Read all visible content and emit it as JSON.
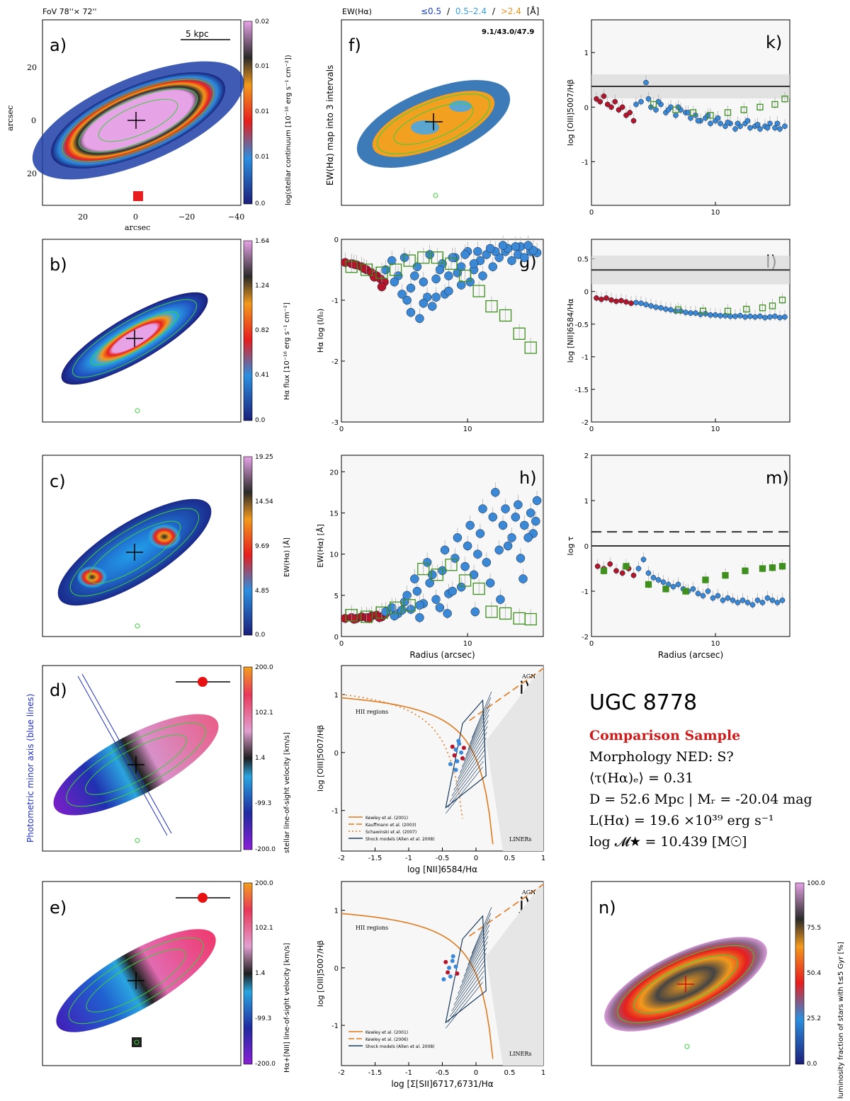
{
  "colors": {
    "red": "#b3152a",
    "blue": "#3a88d6",
    "green": "#3f8f1f",
    "orange": "#e07a1f",
    "navy": "#1a3b5c"
  },
  "header": {
    "fov": "FoV 78''× 72''",
    "ew_title": "EW(Hα)",
    "ew_intervals": [
      "≤0.5",
      "0.5–2.4",
      ">2.4"
    ],
    "ew_sep": "/",
    "ew_unit": "[Å]",
    "ew_numbers": "9.1/43.0/47.9"
  },
  "maps": {
    "a": {
      "letter": "a)",
      "colorbar_label": "log(stellar continuum [10⁻¹⁶ erg s⁻¹ cm⁻²])",
      "ticks": [
        "0.02",
        "0.01",
        "0.01",
        "0.01",
        "0.0"
      ],
      "xticks": [
        "20",
        "0",
        "−20",
        "−40"
      ],
      "yticks": [
        "20",
        "0",
        "20"
      ],
      "xlabel": "arcsec",
      "ylabel": "arcsec",
      "scalebar": "5 kpc"
    },
    "b": {
      "letter": "b)",
      "colorbar_label": "Hα flux [10⁻¹⁶ erg s⁻¹ cm⁻²]",
      "ticks": [
        "1.64",
        "1.24",
        "0.82",
        "0.41",
        "0.0"
      ]
    },
    "c": {
      "letter": "c)",
      "colorbar_label": "EW(Hα) [Å]",
      "ticks": [
        "19.25",
        "14.54",
        "9.69",
        "4.85",
        "0.0"
      ]
    },
    "d": {
      "letter": "d)",
      "colorbar_label": "stellar line-of-sight velocity [km/s]",
      "ticks": [
        "200.0",
        "102.1",
        "1.4",
        "-99.3",
        "-200.0"
      ],
      "side_label": "Photometric minor axis (blue lines)"
    },
    "e": {
      "letter": "e)",
      "colorbar_label": "Hα+[NII] line-of-sight velocity [km/s]",
      "ticks": [
        "200.0",
        "102.1",
        "1.4",
        "-99.3",
        "-200.0"
      ]
    },
    "f": {
      "letter": "f)",
      "ylabel": "EW(Hα) map into 3 intervals"
    },
    "n": {
      "letter": "n)",
      "colorbar_label": "luminosity fraction of stars with t≤5 Gyr [%]",
      "ticks": [
        "100.0",
        "75.5",
        "50.4",
        "25.2",
        "0.0"
      ]
    }
  },
  "chart_data": [
    {
      "id": "g",
      "type": "scatter",
      "letter": "g)",
      "xlabel": "",
      "ylabel": "Hα log (I/I₀)",
      "xlim": [
        0,
        16
      ],
      "ylim": [
        -3,
        0
      ],
      "xticks": [
        0,
        10
      ],
      "yticks": [
        0,
        -1,
        -2,
        -3
      ],
      "series": [
        {
          "name": "red",
          "x": [
            0.3,
            0.8,
            1.2,
            1.6,
            2.0,
            2.4,
            2.8,
            3.1,
            3.4,
            1.0,
            1.8,
            2.6,
            3.2
          ],
          "y": [
            -0.38,
            -0.4,
            -0.42,
            -0.45,
            -0.5,
            -0.55,
            -0.6,
            -0.65,
            -0.7,
            -0.41,
            -0.48,
            -0.62,
            -0.78
          ]
        },
        {
          "name": "blue",
          "x": [
            3.5,
            4.0,
            4.5,
            5.0,
            5.5,
            6.0,
            6.5,
            7.0,
            7.5,
            8.0,
            8.5,
            9.0,
            9.5,
            10.0,
            10.5,
            11.0,
            11.5,
            12.0,
            12.5,
            13.0,
            13.5,
            14.0,
            14.5,
            15.0,
            15.5,
            4.2,
            5.2,
            6.2,
            7.2,
            8.2,
            9.2,
            10.2,
            11.2,
            12.2,
            13.2,
            14.2,
            15.2,
            4.8,
            5.8,
            6.8,
            7.8,
            8.8,
            9.8,
            10.8,
            11.8,
            12.8,
            13.8,
            14.8,
            5.5,
            6.5,
            7.5,
            8.5,
            9.5,
            10.5
          ],
          "y": [
            -0.5,
            -0.35,
            -0.6,
            -0.3,
            -0.8,
            -0.45,
            -0.7,
            -0.25,
            -0.95,
            -0.4,
            -0.6,
            -0.3,
            -0.75,
            -0.2,
            -0.5,
            -0.35,
            -0.25,
            -0.45,
            -0.3,
            -0.2,
            -0.35,
            -0.25,
            -0.3,
            -0.2,
            -0.22,
            -0.7,
            -1.0,
            -1.3,
            -1.1,
            -0.9,
            -0.55,
            -0.7,
            -0.6,
            -0.2,
            -0.15,
            -0.12,
            -0.18,
            -0.9,
            -0.6,
            -0.95,
            -0.5,
            -0.3,
            -0.25,
            -0.2,
            -0.15,
            -0.1,
            -0.12,
            -0.1,
            -1.2,
            -1.05,
            -0.65,
            -0.85,
            -0.45,
            -0.4
          ]
        },
        {
          "name": "green",
          "x": [
            0.8,
            2.0,
            3.2,
            4.3,
            5.4,
            6.5,
            7.6,
            8.7,
            9.8,
            10.9,
            11.9,
            13.0,
            14.1,
            15.0
          ],
          "y": [
            -0.45,
            -0.5,
            -0.55,
            -0.5,
            -0.35,
            -0.3,
            -0.3,
            -0.4,
            -0.6,
            -0.85,
            -1.1,
            -1.25,
            -1.55,
            -1.78
          ]
        }
      ]
    },
    {
      "id": "h",
      "type": "scatter",
      "letter": "h)",
      "xlabel": "Radius (arcsec)",
      "ylabel": "EW(Hα) [Å]",
      "xlim": [
        0,
        16
      ],
      "ylim": [
        0,
        22
      ],
      "xticks": [
        0,
        10
      ],
      "yticks": [
        0,
        5,
        10,
        15,
        20
      ],
      "series": [
        {
          "name": "red",
          "x": [
            0.3,
            0.8,
            1.2,
            1.6,
            2.0,
            2.4,
            2.8,
            3.2,
            3.5,
            1.0,
            2.2,
            3.0
          ],
          "y": [
            2.2,
            2.3,
            2.2,
            2.4,
            2.3,
            2.5,
            2.6,
            2.4,
            2.8,
            2.1,
            2.2,
            2.3
          ]
        },
        {
          "name": "blue",
          "x": [
            3.5,
            4.0,
            4.5,
            5.0,
            5.5,
            6.0,
            6.5,
            7.0,
            7.5,
            8.0,
            8.5,
            9.0,
            9.5,
            10.0,
            10.5,
            11.0,
            11.5,
            12.0,
            12.5,
            13.0,
            13.5,
            14.0,
            14.5,
            15.0,
            15.5,
            4.2,
            5.2,
            6.2,
            7.2,
            8.2,
            9.2,
            10.2,
            11.2,
            12.2,
            13.2,
            14.2,
            15.2,
            4.8,
            5.8,
            6.8,
            7.8,
            8.8,
            9.8,
            10.8,
            11.8,
            12.8,
            13.8,
            14.8,
            15.4,
            6.2,
            8.4,
            10.6,
            12.6,
            14.4
          ],
          "y": [
            3.0,
            3.5,
            2.8,
            4.2,
            3.3,
            5.5,
            4.0,
            6.5,
            4.5,
            8.0,
            5.2,
            9.5,
            6.0,
            11.0,
            7.5,
            12.5,
            9.0,
            14.5,
            10.5,
            15.5,
            12.0,
            16.0,
            13.5,
            15.0,
            16.5,
            2.5,
            5.0,
            3.8,
            7.5,
            10.5,
            12.0,
            13.5,
            15.5,
            17.5,
            11.0,
            9.5,
            12.5,
            3.2,
            7.0,
            9.0,
            3.5,
            5.5,
            8.5,
            10.0,
            6.5,
            13.5,
            14.5,
            12.0,
            14.0,
            2.3,
            2.8,
            3.0,
            4.5,
            7.0
          ]
        },
        {
          "name": "green",
          "x": [
            0.8,
            2.0,
            3.2,
            4.3,
            5.4,
            6.5,
            7.6,
            8.7,
            9.8,
            10.9,
            11.9,
            13.0,
            14.1,
            15.0
          ],
          "y": [
            2.6,
            2.4,
            2.9,
            3.5,
            3.8,
            8.2,
            7.5,
            8.7,
            6.8,
            5.8,
            3.0,
            2.8,
            2.2,
            2.1
          ]
        }
      ]
    },
    {
      "id": "k",
      "type": "scatter",
      "letter": "k)",
      "xlabel": "",
      "ylabel": "log [OIII]5007/Hβ",
      "xlim": [
        0,
        16
      ],
      "ylim": [
        -1.8,
        1.6
      ],
      "xticks": [
        0,
        10
      ],
      "yticks": [
        1,
        0,
        -1
      ],
      "hline": 0.38,
      "series": [
        {
          "name": "red",
          "x": [
            0.4,
            0.7,
            1.0,
            1.3,
            1.6,
            1.9,
            2.2,
            2.5,
            2.8,
            3.1,
            3.4
          ],
          "y": [
            0.15,
            0.1,
            0.2,
            0.05,
            0.0,
            0.1,
            -0.05,
            0.0,
            -0.15,
            -0.1,
            -0.25
          ]
        },
        {
          "name": "blue",
          "x": [
            3.6,
            4.0,
            4.4,
            4.8,
            5.2,
            5.6,
            6.0,
            6.4,
            6.8,
            7.2,
            7.6,
            8.0,
            8.4,
            8.8,
            9.2,
            9.6,
            10.0,
            10.4,
            10.8,
            11.2,
            11.6,
            12.0,
            12.4,
            12.8,
            13.2,
            13.6,
            14.0,
            14.4,
            14.8,
            15.2,
            15.6,
            4.6,
            5.4,
            6.2,
            7.0,
            7.8,
            8.6,
            9.4,
            10.2,
            11.0,
            11.8,
            12.6,
            13.4,
            14.2,
            15.0
          ],
          "y": [
            0.05,
            0.1,
            0.45,
            0.0,
            -0.05,
            0.05,
            -0.1,
            0.0,
            -0.15,
            -0.05,
            -0.1,
            -0.2,
            -0.15,
            -0.25,
            -0.2,
            -0.3,
            -0.25,
            -0.3,
            -0.35,
            -0.3,
            -0.4,
            -0.35,
            -0.3,
            -0.38,
            -0.35,
            -0.4,
            -0.35,
            -0.3,
            -0.38,
            -0.4,
            -0.35,
            0.15,
            0.1,
            -0.05,
            0.0,
            -0.1,
            -0.25,
            -0.15,
            -0.2,
            -0.28,
            -0.3,
            -0.25,
            -0.32,
            -0.38,
            -0.3
          ]
        },
        {
          "name": "green",
          "x": [
            5.0,
            6.8,
            8.2,
            9.6,
            11.0,
            12.3,
            13.6,
            14.8,
            15.6
          ],
          "y": [
            0.05,
            -0.05,
            -0.1,
            -0.15,
            -0.1,
            -0.05,
            0.0,
            0.05,
            0.15
          ]
        }
      ]
    },
    {
      "id": "l",
      "type": "scatter",
      "letter": "l)",
      "xlabel": "",
      "ylabel": "log [NII]6584/Hα",
      "xlim": [
        0,
        16
      ],
      "ylim": [
        -2,
        0.8
      ],
      "xticks": [
        0,
        10
      ],
      "yticks": [
        0.5,
        0,
        -0.5,
        -1,
        -1.5,
        -2
      ],
      "hline": 0.33,
      "series": [
        {
          "name": "red",
          "x": [
            0.4,
            0.8,
            1.2,
            1.6,
            2.0,
            2.4,
            2.8,
            3.2
          ],
          "y": [
            -0.1,
            -0.12,
            -0.1,
            -0.13,
            -0.15,
            -0.14,
            -0.16,
            -0.18
          ]
        },
        {
          "name": "blue",
          "x": [
            3.6,
            4.0,
            4.4,
            4.8,
            5.2,
            5.6,
            6.0,
            6.4,
            6.8,
            7.2,
            7.6,
            8.0,
            8.4,
            8.8,
            9.2,
            9.6,
            10.0,
            10.4,
            10.8,
            11.2,
            11.6,
            12.0,
            12.4,
            12.8,
            13.2,
            13.6,
            14.0,
            14.4,
            14.8,
            15.2,
            15.6
          ],
          "y": [
            -0.17,
            -0.18,
            -0.2,
            -0.22,
            -0.24,
            -0.25,
            -0.27,
            -0.28,
            -0.3,
            -0.3,
            -0.32,
            -0.33,
            -0.33,
            -0.35,
            -0.34,
            -0.36,
            -0.36,
            -0.37,
            -0.37,
            -0.38,
            -0.38,
            -0.37,
            -0.39,
            -0.38,
            -0.39,
            -0.38,
            -0.4,
            -0.39,
            -0.38,
            -0.4,
            -0.39
          ]
        },
        {
          "name": "green",
          "x": [
            7.0,
            9.0,
            11.0,
            12.5,
            13.8,
            14.6,
            15.4
          ],
          "y": [
            -0.28,
            -0.3,
            -0.3,
            -0.27,
            -0.25,
            -0.22,
            -0.13
          ]
        }
      ]
    },
    {
      "id": "m",
      "type": "scatter",
      "letter": "m)",
      "xlabel": "Radius (arcsec)",
      "ylabel": "log τ",
      "xlim": [
        0,
        16
      ],
      "ylim": [
        -2,
        2
      ],
      "xticks": [
        0,
        10
      ],
      "yticks": [
        2,
        1,
        0,
        -1,
        -2
      ],
      "hline": 0,
      "dashed_hline": 0.31,
      "series": [
        {
          "name": "red",
          "x": [
            0.5,
            1.0,
            1.5,
            2.0,
            2.5,
            3.0,
            3.4
          ],
          "y": [
            -0.45,
            -0.5,
            -0.4,
            -0.55,
            -0.6,
            -0.5,
            -0.65
          ]
        },
        {
          "name": "blue",
          "x": [
            3.8,
            4.2,
            4.6,
            5.0,
            5.4,
            5.8,
            6.2,
            6.6,
            7.0,
            7.4,
            7.8,
            8.2,
            8.6,
            9.0,
            9.4,
            9.8,
            10.2,
            10.6,
            11.0,
            11.4,
            11.8,
            12.2,
            12.6,
            13.0,
            13.4,
            13.8,
            14.2,
            14.6,
            15.0,
            15.4
          ],
          "y": [
            -0.5,
            -0.3,
            -0.6,
            -0.7,
            -0.75,
            -0.8,
            -0.85,
            -0.9,
            -0.85,
            -0.95,
            -1.0,
            -0.95,
            -1.05,
            -1.1,
            -1.0,
            -1.15,
            -1.1,
            -1.2,
            -1.15,
            -1.2,
            -1.25,
            -1.2,
            -1.25,
            -1.3,
            -1.2,
            -1.25,
            -1.15,
            -1.2,
            -1.25,
            -1.2
          ]
        },
        {
          "name": "green",
          "x": [
            1.0,
            2.8,
            4.6,
            6.0,
            7.6,
            9.2,
            10.8,
            12.4,
            13.8,
            14.6,
            15.4
          ],
          "y": [
            -0.55,
            -0.45,
            -0.85,
            -0.95,
            -1.0,
            -0.75,
            -0.65,
            -0.55,
            -0.5,
            -0.48,
            -0.45
          ]
        }
      ]
    },
    {
      "id": "i",
      "type": "line",
      "letter": "i)",
      "xlabel": "log [NII]6584/Hα",
      "ylabel": "log [OIII]5007/Hβ",
      "xlim": [
        -2,
        1
      ],
      "ylim": [
        -1.7,
        1.5
      ],
      "xticks": [
        -2,
        -1.5,
        -1,
        -0.5,
        0,
        0.5,
        1
      ],
      "yticks": [
        1,
        0,
        -1
      ],
      "region_labels": [
        "AGN",
        "HII regions",
        "LINERs"
      ],
      "legend": [
        "Kewley et al. (2001)",
        "Kauffmann et al. (2003)",
        "Schawinski et al. (2007)",
        "Shock models (Allen et al. 2008)"
      ],
      "points": {
        "x": [
          -0.35,
          -0.3,
          -0.25,
          -0.32,
          -0.22,
          -0.28,
          -0.2,
          -0.38,
          -0.26,
          -0.18,
          -0.3
        ],
        "y": [
          0.1,
          0.05,
          0.15,
          -0.05,
          0.0,
          -0.15,
          -0.1,
          -0.2,
          0.2,
          0.08,
          -0.3
        ]
      }
    },
    {
      "id": "j",
      "type": "line",
      "letter": "j)",
      "xlabel": "log [Σ[SII]6717,6731/Hα",
      "ylabel": "log [OIII]5007/Hβ",
      "xlim": [
        -2,
        1
      ],
      "ylim": [
        -1.7,
        1.5
      ],
      "xticks": [
        -2,
        -1.5,
        -1,
        -0.5,
        0,
        0.5,
        1
      ],
      "yticks": [
        1,
        0,
        -1
      ],
      "region_labels": [
        "AGN",
        "HII regions",
        "LINERs"
      ],
      "legend": [
        "Kewley et al. (2001)",
        "Kewley et al. (2006)",
        "Shock models (Allen et al. 2008)"
      ],
      "points": {
        "x": [
          -0.45,
          -0.4,
          -0.35,
          -0.42,
          -0.3,
          -0.38,
          -0.28,
          -0.48,
          -0.34
        ],
        "y": [
          0.1,
          0.0,
          0.12,
          -0.08,
          0.02,
          -0.15,
          -0.1,
          -0.2,
          0.2
        ]
      }
    }
  ],
  "info": {
    "name": "UGC 8778",
    "sample": "Comparison Sample",
    "morphology": "Morphology NED: S?",
    "tau": "⟨τ(Hα)ₑ⟩ = 0.31",
    "distance": "D = 52.6 Mpc | Mᵣ = -20.04 mag",
    "luminosity": "L(Hα) = 19.6 ×10³⁹ erg s⁻¹",
    "mass": "log 𝓜★ = 10.439 [M☉]"
  }
}
